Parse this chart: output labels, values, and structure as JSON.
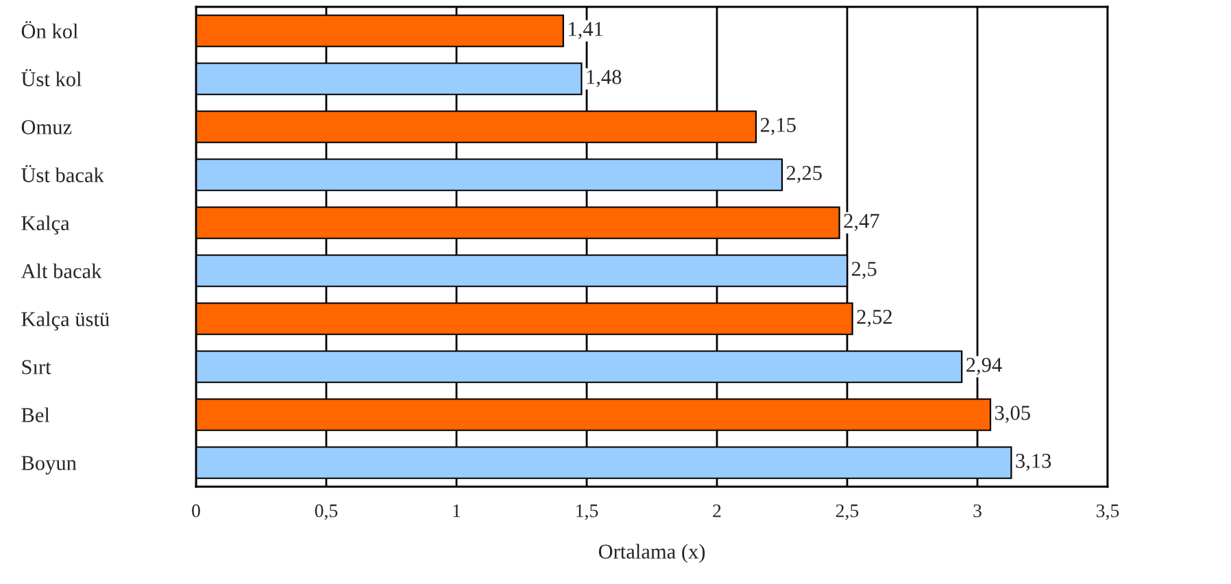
{
  "chart_data": {
    "type": "bar",
    "orientation": "horizontal",
    "xlabel": "Ortalama (x)",
    "categories": [
      "Ön kol",
      "Üst kol",
      "Omuz",
      "Üst bacak",
      "Kalça",
      "Alt bacak",
      "Kalça üstü",
      "Sırt",
      "Bel",
      "Boyun"
    ],
    "values": [
      1.41,
      1.48,
      2.15,
      2.25,
      2.47,
      2.5,
      2.52,
      2.94,
      3.05,
      3.13
    ],
    "colors": [
      "#ff6600",
      "#99ccff",
      "#ff6600",
      "#99ccff",
      "#ff6600",
      "#99ccff",
      "#ff6600",
      "#99ccff",
      "#ff6600",
      "#99ccff"
    ],
    "value_labels": [
      "1,41",
      "1,48",
      "2,15",
      "2,25",
      "2,47",
      "2,5",
      "2,52",
      "2,94",
      "3,05",
      "3,13"
    ],
    "xlim": [
      0,
      3.5
    ],
    "xticks": [
      0,
      {
        "value": 0.5,
        "label": "0,5"
      },
      1,
      {
        "value": 1.5,
        "label": "1,5"
      },
      2,
      {
        "value": 2.5,
        "label": "2,5"
      },
      3,
      {
        "value": 3.5,
        "label": "3,5"
      }
    ],
    "grid": "x",
    "legend": false
  }
}
